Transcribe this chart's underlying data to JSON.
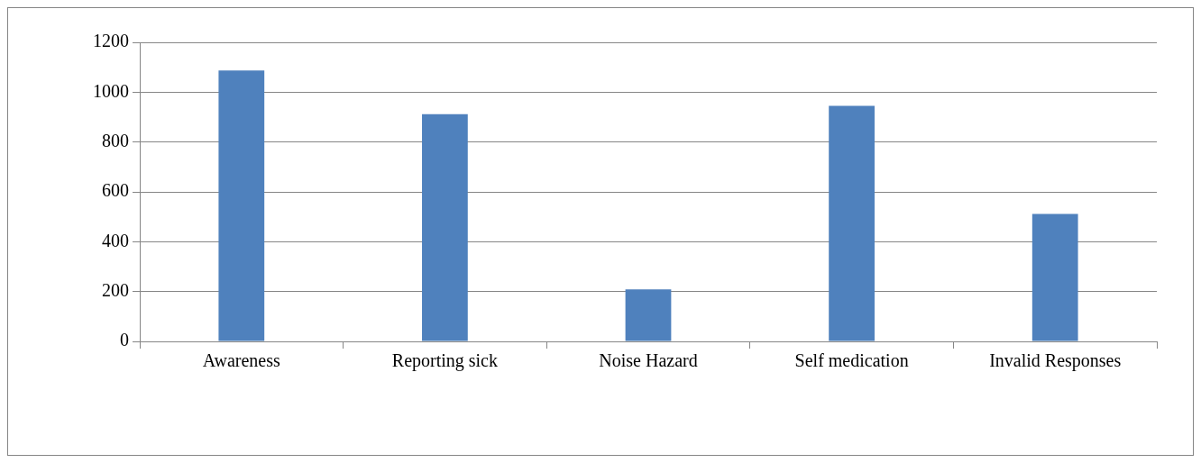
{
  "chart_data": {
    "type": "bar",
    "categories": [
      "Awareness",
      "Reporting sick",
      "Noise Hazard",
      "Self medication",
      "Invalid Responses"
    ],
    "values": [
      1087,
      912,
      209,
      945,
      511
    ],
    "color": "#4f81bd",
    "ylim": [
      0,
      1200
    ],
    "yticks": [
      0,
      200,
      400,
      600,
      800,
      1000,
      1200
    ],
    "grid": "y",
    "legend": false
  }
}
